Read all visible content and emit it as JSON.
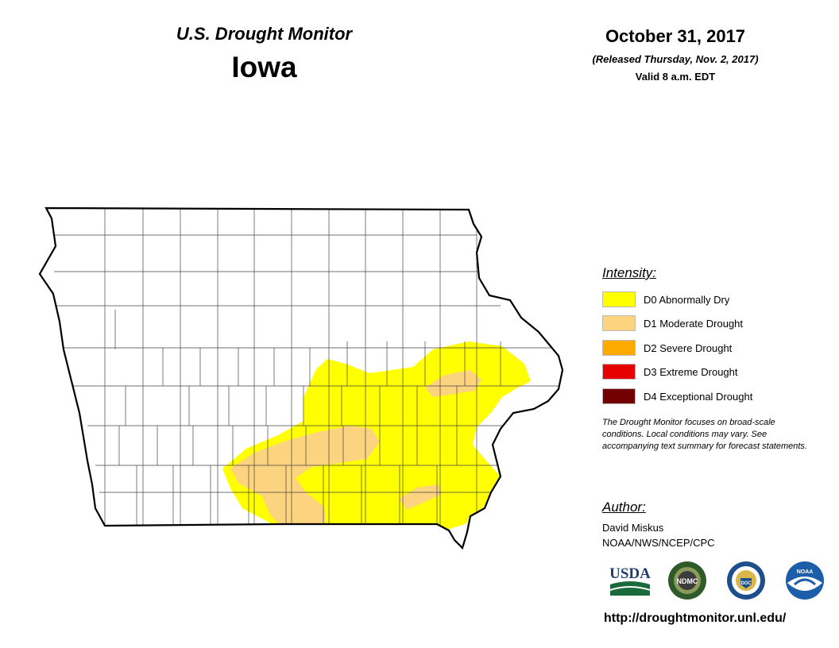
{
  "header": {
    "subtitle": "U.S. Drought Monitor",
    "state": "Iowa",
    "date": "October 31, 2017",
    "released": "(Released Thursday, Nov. 2, 2017)",
    "valid": "Valid 8 a.m. EDT"
  },
  "legend": {
    "title": "Intensity:",
    "items": [
      {
        "label": "D0 Abnormally Dry",
        "color": "#ffff00"
      },
      {
        "label": "D1 Moderate Drought",
        "color": "#fcd37f"
      },
      {
        "label": "D2 Severe Drought",
        "color": "#ffaa00"
      },
      {
        "label": "D3 Extreme Drought",
        "color": "#e60000"
      },
      {
        "label": "D4 Exceptional Drought",
        "color": "#730000"
      }
    ]
  },
  "note": "The Drought Monitor focuses on broad-scale conditions. Local conditions may vary. See accompanying text summary for forecast statements.",
  "author": {
    "title": "Author:",
    "name": "David Miskus",
    "org": "NOAA/NWS/NCEP/CPC"
  },
  "logos": {
    "usda": "USDA",
    "ndmc": "NDMC",
    "doc": "DOC",
    "noaa": "NOAA"
  },
  "url": "http://droughtmonitor.unl.edu/"
}
